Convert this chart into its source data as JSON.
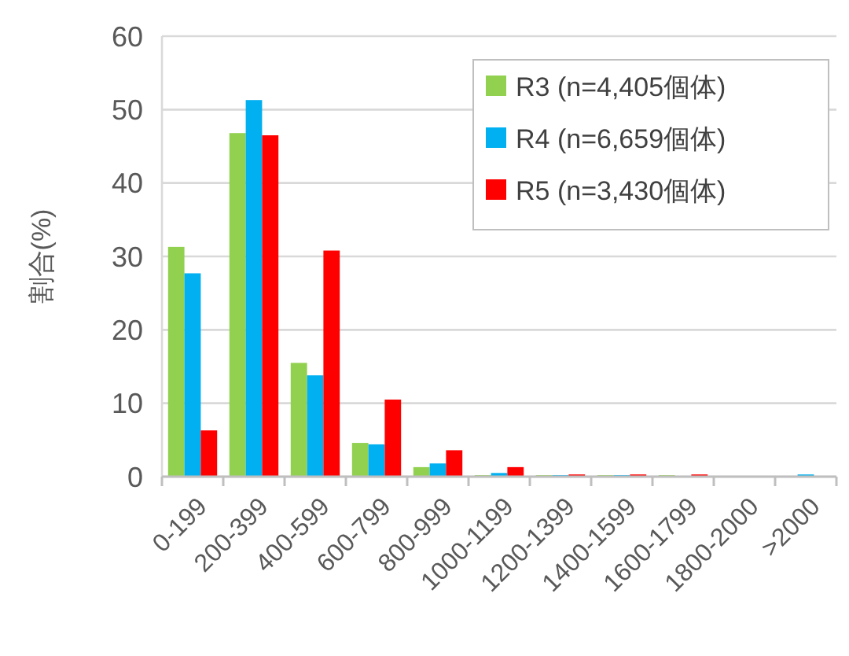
{
  "chart_data": {
    "type": "bar",
    "ylabel": "割合(%)",
    "categories": [
      "0-199",
      "200-399",
      "400-599",
      "600-799",
      "800-999",
      "1000-1199",
      "1200-1399",
      "1400-1599",
      "1600-1799",
      "1800-2000",
      ">2000"
    ],
    "series": [
      {
        "name": "R3 (n=4,405個体)",
        "color": "#92d050",
        "values": [
          31.3,
          46.8,
          15.5,
          4.6,
          1.3,
          0.2,
          0.2,
          0.2,
          0.2,
          0,
          0
        ]
      },
      {
        "name": "R4 (n=6,659個体)",
        "color": "#00b0f0",
        "values": [
          27.7,
          51.3,
          13.8,
          4.4,
          1.8,
          0.5,
          0.2,
          0.2,
          0,
          0,
          0.3
        ]
      },
      {
        "name": "R5 (n=3,430個体)",
        "color": "#ff0000",
        "values": [
          6.3,
          46.5,
          30.8,
          10.5,
          3.6,
          1.3,
          0.3,
          0.3,
          0.3,
          0,
          0
        ]
      }
    ],
    "ylim": [
      0,
      60
    ],
    "yticks": [
      0,
      10,
      20,
      30,
      40,
      50,
      60
    ],
    "grid": "y",
    "legend": "top right"
  }
}
